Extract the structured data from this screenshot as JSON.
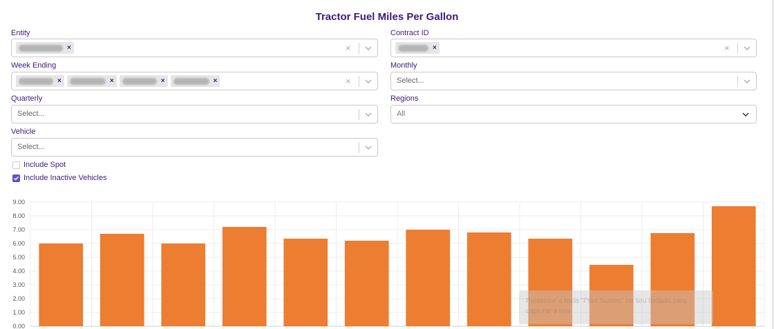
{
  "page": {
    "title": "Tractor Fuel Miles Per Gallon"
  },
  "filters": {
    "entity": {
      "label": "Entity"
    },
    "contract_id": {
      "label": "Contract ID"
    },
    "week_ending": {
      "label": "Week Ending"
    },
    "monthly": {
      "label": "Monthly",
      "placeholder": "Select..."
    },
    "quarterly": {
      "label": "Quarterly",
      "placeholder": "Select..."
    },
    "regions": {
      "label": "Regions",
      "value": "All"
    },
    "vehicle": {
      "label": "Vehicle",
      "placeholder": "Select..."
    },
    "include_spot": {
      "label": "Include Spot",
      "checked": false
    },
    "include_inactive": {
      "label": "Include Inactive Vehicles",
      "checked": true
    }
  },
  "toast": {
    "line1": "Pressione a tecla \"Print Screen\" no seu teclado para",
    "line2": "capturar a tela"
  },
  "chart_data": {
    "type": "bar",
    "values": [
      6.0,
      6.7,
      6.0,
      7.2,
      6.35,
      6.2,
      7.0,
      6.8,
      6.35,
      4.45,
      6.75,
      8.7
    ],
    "ylim": [
      0,
      9
    ],
    "yticks": [
      "0.00",
      "1.00",
      "2.00",
      "3.00",
      "4.00",
      "5.00",
      "6.00",
      "7.00",
      "8.00",
      "9.00"
    ],
    "grid": true,
    "bar_color": "#ed7d31"
  }
}
